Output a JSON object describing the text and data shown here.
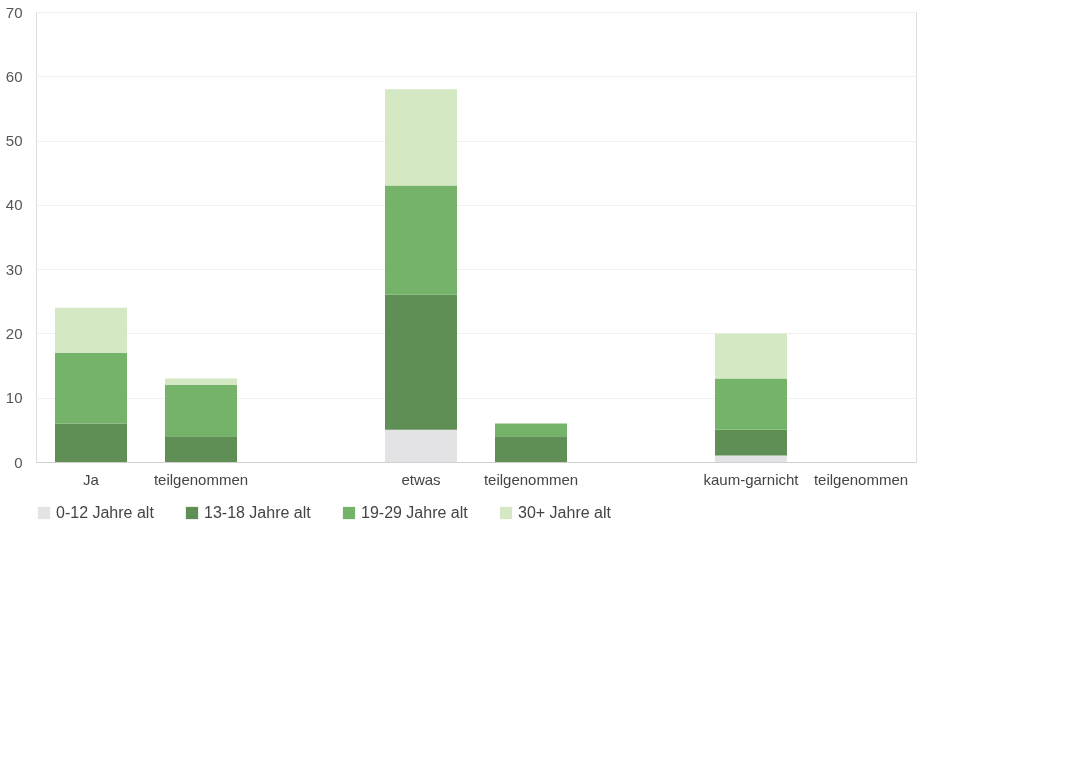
{
  "chart_data": {
    "type": "bar",
    "stacked": true,
    "categories": [
      "Ja",
      "teilgenommen",
      null,
      "etwas",
      "teilgenommen",
      null,
      "kaum-garnicht",
      "teilgenommen"
    ],
    "series": [
      {
        "name": "0-12 Jahre alt",
        "color": "#e3e3e6",
        "values": [
          0,
          0,
          null,
          5,
          0,
          null,
          1,
          0
        ]
      },
      {
        "name": "13-18 Jahre alt",
        "color": "#5f8f55",
        "values": [
          6,
          4,
          null,
          21,
          4,
          null,
          4,
          0
        ]
      },
      {
        "name": "19-29 Jahre alt",
        "color": "#76b36a",
        "values": [
          11,
          8,
          null,
          17,
          2,
          null,
          8,
          0
        ]
      },
      {
        "name": "30+ Jahre alt",
        "color": "#d3e8c3",
        "values": [
          7,
          1,
          null,
          15,
          0,
          null,
          7,
          0
        ]
      }
    ],
    "ylim": [
      0,
      70
    ],
    "yticks": [
      0,
      10,
      20,
      30,
      40,
      50,
      60,
      70
    ],
    "grid": "y",
    "legend": "bottom"
  }
}
